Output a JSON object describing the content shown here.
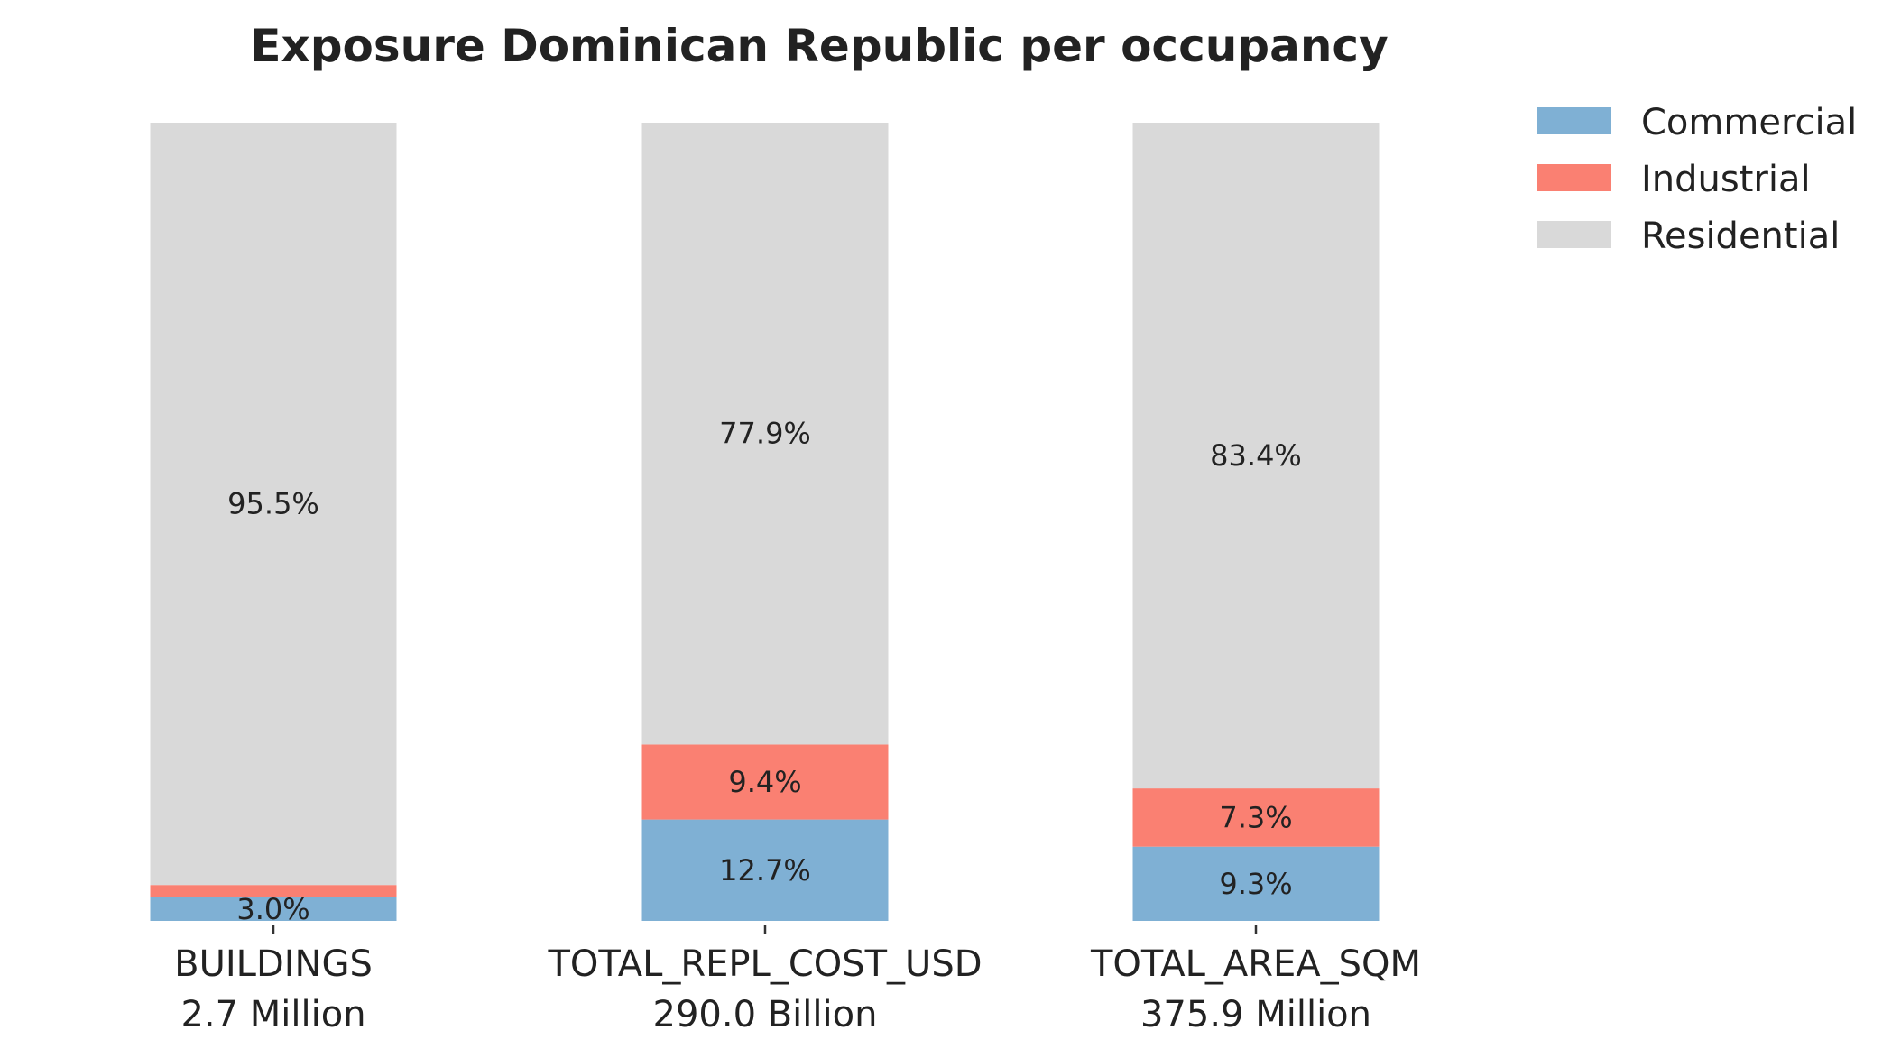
{
  "chart_data": {
    "type": "bar",
    "stacked": true,
    "percent": true,
    "title": "Exposure Dominican Republic per occupancy",
    "categories": [
      "BUILDINGS",
      "TOTAL_REPL_COST_USD",
      "TOTAL_AREA_SQM"
    ],
    "category_totals": [
      "2.7 Million",
      "290.0 Billion",
      "375.9 Million"
    ],
    "series": [
      {
        "name": "Commercial",
        "color": "#7fb0d4",
        "values": [
          3.0,
          12.7,
          9.3
        ],
        "labels": [
          "3.0%",
          "12.7%",
          "9.3%"
        ]
      },
      {
        "name": "Industrial",
        "color": "#fa8072",
        "values": [
          1.5,
          9.4,
          7.3
        ],
        "labels": [
          "",
          "9.4%",
          "7.3%"
        ]
      },
      {
        "name": "Residential",
        "color": "#d9d9d9",
        "values": [
          95.5,
          77.9,
          83.4
        ],
        "labels": [
          "95.5%",
          "77.9%",
          "83.4%"
        ]
      }
    ],
    "ylim": [
      0,
      100
    ],
    "legend": "top-right",
    "grid": false
  }
}
